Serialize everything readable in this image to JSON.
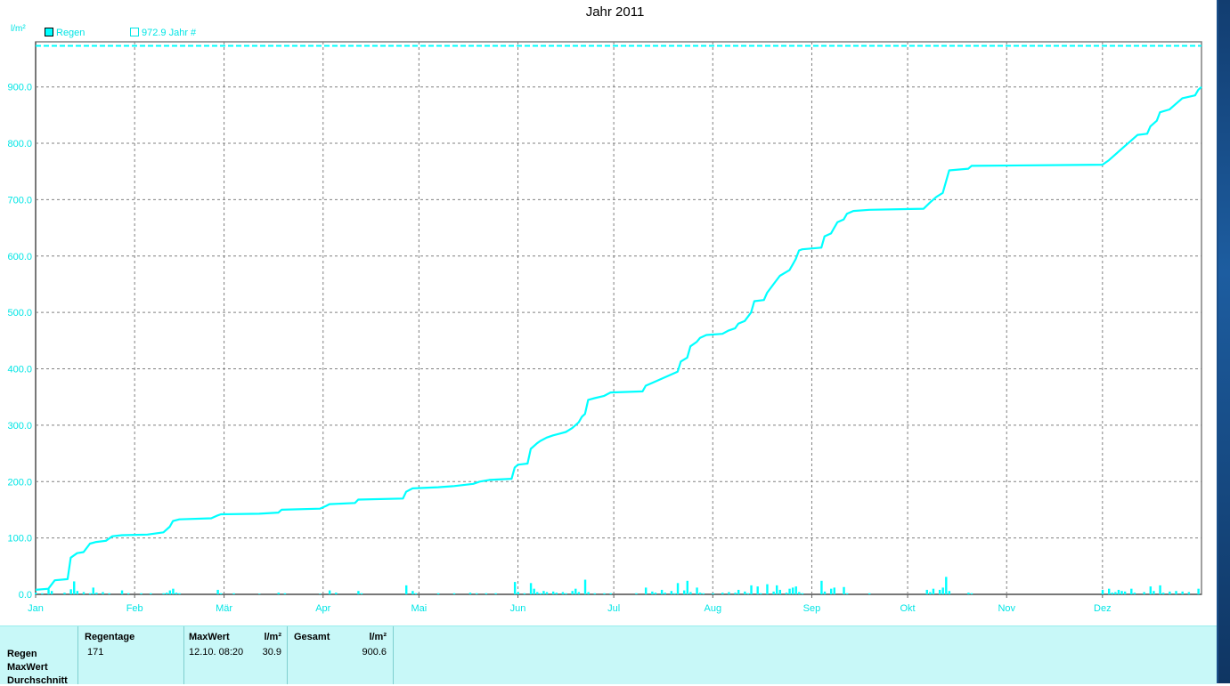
{
  "title": "Jahr 2011",
  "y_unit": "l/m²",
  "legend": [
    {
      "label": "Regen",
      "style": "filled"
    },
    {
      "label": "972.9 Jahr #",
      "style": "hollow"
    }
  ],
  "colors": {
    "series": "#00ffff",
    "grid": "#808080",
    "stats_bg": "#c8f8f8"
  },
  "chart_data": {
    "type": "line",
    "title": "Jahr 2011",
    "ylabel": "l/m²",
    "ylim": [
      0,
      980
    ],
    "xlim": [
      0,
      365
    ],
    "grid": true,
    "legend_position": "top-left",
    "y_ticks": [
      "0.0",
      "100.0",
      "200.0",
      "300.0",
      "400.0",
      "500.0",
      "600.0",
      "700.0",
      "800.0",
      "900.0"
    ],
    "x_ticks": [
      {
        "label": "Jan",
        "day": 0
      },
      {
        "label": "Feb",
        "day": 31
      },
      {
        "label": "Mär",
        "day": 59
      },
      {
        "label": "Apr",
        "day": 90
      },
      {
        "label": "Mai",
        "day": 120
      },
      {
        "label": "Jun",
        "day": 151
      },
      {
        "label": "Jul",
        "day": 181
      },
      {
        "label": "Aug",
        "day": 212
      },
      {
        "label": "Sep",
        "day": 243
      },
      {
        "label": "Okt",
        "day": 273
      },
      {
        "label": "Nov",
        "day": 304
      },
      {
        "label": "Dez",
        "day": 334
      }
    ],
    "reference_line": {
      "name": "972.9 Jahr #",
      "value": 972.9
    },
    "series": [
      {
        "name": "Regen",
        "kind": "cumulative",
        "points": [
          [
            0,
            8
          ],
          [
            4,
            10
          ],
          [
            6,
            25
          ],
          [
            10,
            27
          ],
          [
            11,
            65
          ],
          [
            13,
            73
          ],
          [
            15,
            75
          ],
          [
            17,
            90
          ],
          [
            19,
            93
          ],
          [
            22,
            95
          ],
          [
            24,
            103
          ],
          [
            27,
            105
          ],
          [
            35,
            106
          ],
          [
            40,
            110
          ],
          [
            42,
            120
          ],
          [
            43,
            130
          ],
          [
            45,
            133
          ],
          [
            55,
            135
          ],
          [
            57,
            140
          ],
          [
            58,
            142
          ],
          [
            70,
            143
          ],
          [
            76,
            145
          ],
          [
            77,
            150
          ],
          [
            89,
            152
          ],
          [
            91,
            157
          ],
          [
            92,
            160
          ],
          [
            100,
            162
          ],
          [
            101,
            168
          ],
          [
            115,
            170
          ],
          [
            116,
            182
          ],
          [
            118,
            188
          ],
          [
            126,
            190
          ],
          [
            131,
            192
          ],
          [
            137,
            196
          ],
          [
            139,
            200
          ],
          [
            142,
            203
          ],
          [
            149,
            205
          ],
          [
            150,
            225
          ],
          [
            151,
            230
          ],
          [
            154,
            232
          ],
          [
            155,
            258
          ],
          [
            157,
            268
          ],
          [
            158,
            272
          ],
          [
            160,
            278
          ],
          [
            162,
            282
          ],
          [
            164,
            285
          ],
          [
            166,
            288
          ],
          [
            168,
            295
          ],
          [
            170,
            305
          ],
          [
            171,
            315
          ],
          [
            172,
            320
          ],
          [
            173,
            345
          ],
          [
            175,
            348
          ],
          [
            178,
            352
          ],
          [
            180,
            358
          ],
          [
            190,
            360
          ],
          [
            191,
            370
          ],
          [
            193,
            375
          ],
          [
            195,
            380
          ],
          [
            199,
            390
          ],
          [
            201,
            395
          ],
          [
            202,
            413
          ],
          [
            204,
            420
          ],
          [
            205,
            440
          ],
          [
            207,
            448
          ],
          [
            208,
            455
          ],
          [
            210,
            460
          ],
          [
            215,
            462
          ],
          [
            217,
            468
          ],
          [
            219,
            472
          ],
          [
            220,
            480
          ],
          [
            222,
            485
          ],
          [
            224,
            500
          ],
          [
            225,
            520
          ],
          [
            228,
            522
          ],
          [
            229,
            535
          ],
          [
            231,
            550
          ],
          [
            233,
            565
          ],
          [
            236,
            575
          ],
          [
            237,
            585
          ],
          [
            238,
            595
          ],
          [
            239,
            610
          ],
          [
            240,
            612
          ],
          [
            246,
            615
          ],
          [
            247,
            635
          ],
          [
            249,
            640
          ],
          [
            250,
            650
          ],
          [
            251,
            660
          ],
          [
            253,
            665
          ],
          [
            254,
            675
          ],
          [
            256,
            680
          ],
          [
            261,
            682
          ],
          [
            278,
            684
          ],
          [
            280,
            695
          ],
          [
            282,
            705
          ],
          [
            284,
            712
          ],
          [
            285,
            732
          ],
          [
            286,
            752
          ],
          [
            292,
            755
          ],
          [
            293,
            760
          ],
          [
            334,
            762
          ],
          [
            336,
            770
          ],
          [
            338,
            780
          ],
          [
            341,
            795
          ],
          [
            343,
            805
          ],
          [
            345,
            815
          ],
          [
            348,
            817
          ],
          [
            349,
            830
          ],
          [
            351,
            840
          ],
          [
            352,
            855
          ],
          [
            355,
            860
          ],
          [
            357,
            870
          ],
          [
            359,
            880
          ],
          [
            363,
            885
          ],
          [
            364,
            895
          ],
          [
            365,
            900
          ]
        ]
      },
      {
        "name": "Regen",
        "kind": "daily",
        "points": [
          [
            0,
            3
          ],
          [
            2,
            2
          ],
          [
            4,
            9
          ],
          [
            5,
            6
          ],
          [
            9,
            3
          ],
          [
            11,
            9
          ],
          [
            12,
            23
          ],
          [
            13,
            6
          ],
          [
            15,
            4
          ],
          [
            17,
            2
          ],
          [
            18,
            12
          ],
          [
            19,
            3
          ],
          [
            21,
            4
          ],
          [
            23,
            2
          ],
          [
            27,
            7
          ],
          [
            29,
            2
          ],
          [
            33,
            2
          ],
          [
            36,
            2
          ],
          [
            40,
            2
          ],
          [
            41,
            3
          ],
          [
            42,
            7
          ],
          [
            43,
            10
          ],
          [
            44,
            3
          ],
          [
            45,
            2
          ],
          [
            57,
            8
          ],
          [
            58,
            2
          ],
          [
            62,
            2
          ],
          [
            70,
            1
          ],
          [
            76,
            3
          ],
          [
            78,
            2
          ],
          [
            89,
            1
          ],
          [
            92,
            7
          ],
          [
            94,
            3
          ],
          [
            101,
            6
          ],
          [
            102,
            2
          ],
          [
            116,
            16
          ],
          [
            118,
            6
          ],
          [
            119,
            2
          ],
          [
            126,
            2
          ],
          [
            131,
            2
          ],
          [
            136,
            3
          ],
          [
            138,
            2
          ],
          [
            141,
            2
          ],
          [
            144,
            2
          ],
          [
            150,
            22
          ],
          [
            151,
            4
          ],
          [
            153,
            2
          ],
          [
            155,
            20
          ],
          [
            156,
            10
          ],
          [
            157,
            4
          ],
          [
            158,
            2
          ],
          [
            159,
            6
          ],
          [
            160,
            4
          ],
          [
            162,
            5
          ],
          [
            163,
            3
          ],
          [
            165,
            4
          ],
          [
            166,
            2
          ],
          [
            168,
            6
          ],
          [
            169,
            10
          ],
          [
            170,
            4
          ],
          [
            172,
            26
          ],
          [
            173,
            4
          ],
          [
            175,
            2
          ],
          [
            178,
            2
          ],
          [
            180,
            2
          ],
          [
            188,
            2
          ],
          [
            191,
            12
          ],
          [
            193,
            5
          ],
          [
            194,
            3
          ],
          [
            196,
            8
          ],
          [
            197,
            3
          ],
          [
            199,
            6
          ],
          [
            200,
            2
          ],
          [
            201,
            20
          ],
          [
            203,
            7
          ],
          [
            204,
            24
          ],
          [
            205,
            4
          ],
          [
            207,
            12
          ],
          [
            208,
            3
          ],
          [
            209,
            2
          ],
          [
            212,
            2
          ],
          [
            215,
            3
          ],
          [
            217,
            4
          ],
          [
            219,
            3
          ],
          [
            220,
            8
          ],
          [
            222,
            5
          ],
          [
            223,
            2
          ],
          [
            224,
            16
          ],
          [
            226,
            14
          ],
          [
            227,
            2
          ],
          [
            229,
            18
          ],
          [
            231,
            5
          ],
          [
            232,
            16
          ],
          [
            233,
            8
          ],
          [
            235,
            3
          ],
          [
            236,
            10
          ],
          [
            237,
            12
          ],
          [
            238,
            14
          ],
          [
            239,
            4
          ],
          [
            240,
            2
          ],
          [
            246,
            24
          ],
          [
            247,
            5
          ],
          [
            249,
            10
          ],
          [
            250,
            12
          ],
          [
            253,
            13
          ],
          [
            254,
            2
          ],
          [
            261,
            2
          ],
          [
            279,
            8
          ],
          [
            280,
            4
          ],
          [
            281,
            10
          ],
          [
            283,
            8
          ],
          [
            284,
            12
          ],
          [
            285,
            31
          ],
          [
            286,
            6
          ],
          [
            292,
            3
          ],
          [
            293,
            2
          ],
          [
            334,
            8
          ],
          [
            336,
            10
          ],
          [
            337,
            3
          ],
          [
            338,
            4
          ],
          [
            339,
            8
          ],
          [
            340,
            6
          ],
          [
            341,
            5
          ],
          [
            343,
            10
          ],
          [
            344,
            3
          ],
          [
            347,
            4
          ],
          [
            349,
            14
          ],
          [
            350,
            6
          ],
          [
            352,
            16
          ],
          [
            353,
            3
          ],
          [
            355,
            5
          ],
          [
            357,
            6
          ],
          [
            359,
            5
          ],
          [
            361,
            4
          ],
          [
            364,
            10
          ]
        ]
      }
    ]
  },
  "stats": {
    "row_labels": [
      "Regen",
      "MaxWert",
      "Durchschnitt"
    ],
    "columns": [
      {
        "header": "Regentage",
        "unit": "",
        "value": "171",
        "extra": ""
      },
      {
        "header": "MaxWert",
        "unit": "l/m²",
        "value": "12.10.  08:20",
        "extra": "30.9"
      },
      {
        "header": "Gesamt",
        "unit": "l/m²",
        "value": "",
        "extra": "900.6"
      }
    ]
  }
}
